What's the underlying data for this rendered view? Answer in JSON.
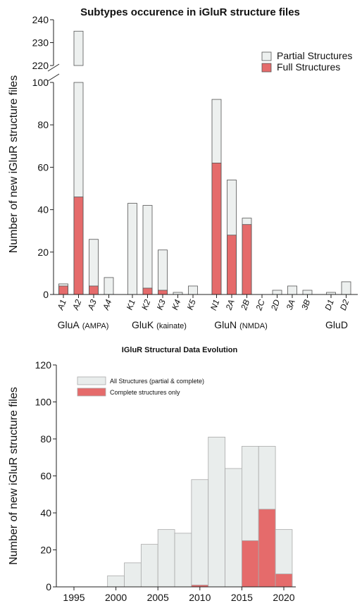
{
  "chart_data": [
    {
      "type": "bar",
      "title": "Subtypes occurence in iGluR structure files",
      "ylabel": "Number of new iGluR structure files",
      "xlabel": "",
      "ylim": [
        0,
        240
      ],
      "y_axis_break": [
        100,
        220
      ],
      "yticks": [
        "0",
        "20",
        "40",
        "60",
        "80",
        "100",
        "220",
        "230",
        "240"
      ],
      "categories": [
        "A1",
        "A2",
        "A3",
        "A4",
        "K1",
        "K2",
        "K3",
        "K4",
        "K5",
        "N1",
        "2A",
        "2B",
        "2C",
        "2D",
        "3A",
        "3B",
        "D1",
        "D2"
      ],
      "groups": [
        {
          "label": "GluA",
          "sub": "(AMPA)",
          "categories": [
            "A1",
            "A2",
            "A3",
            "A4"
          ]
        },
        {
          "label": "GluK",
          "sub": "(kainate)",
          "categories": [
            "K1",
            "K2",
            "K3",
            "K4",
            "K5"
          ]
        },
        {
          "label": "GluN",
          "sub": "(NMDA)",
          "categories": [
            "N1",
            "2A",
            "2B",
            "2C",
            "2D",
            "3A",
            "3B"
          ]
        },
        {
          "label": "GluD",
          "sub": "",
          "categories": [
            "D1",
            "D2"
          ]
        }
      ],
      "series": [
        {
          "name": "Partial Structures",
          "color": "#edf0ef",
          "values": [
            5,
            235,
            26,
            8,
            43,
            42,
            21,
            1,
            4,
            92,
            54,
            36,
            0,
            2,
            4,
            2,
            1,
            6
          ]
        },
        {
          "name": "Full Structures",
          "color": "#e56b6b",
          "values": [
            4,
            46,
            4,
            0,
            0,
            3,
            2,
            0,
            0,
            62,
            28,
            33,
            0,
            0,
            0,
            0,
            0,
            0
          ]
        }
      ],
      "legend": "top-right",
      "grid": false
    },
    {
      "type": "bar",
      "title": "IGluR Structural Data Evolution",
      "ylabel": "Number of new iGluR structure files",
      "xlabel": "",
      "xlim": [
        1995,
        2021
      ],
      "ylim": [
        0,
        120
      ],
      "xticks": [
        "1995",
        "2000",
        "2005",
        "2010",
        "2015",
        "2020"
      ],
      "yticks": [
        "0",
        "20",
        "40",
        "60",
        "80",
        "100",
        "120"
      ],
      "bins": [
        [
          1999,
          2001
        ],
        [
          2001,
          2003
        ],
        [
          2003,
          2005
        ],
        [
          2005,
          2007
        ],
        [
          2007,
          2009
        ],
        [
          2009,
          2011
        ],
        [
          2011,
          2013
        ],
        [
          2013,
          2015
        ],
        [
          2015,
          2017
        ],
        [
          2017,
          2019
        ],
        [
          2019,
          2021
        ]
      ],
      "series": [
        {
          "name": "All Structures (partial & complete)",
          "color": "#e9edec",
          "values": [
            6,
            13,
            23,
            31,
            29,
            58,
            81,
            64,
            76,
            76,
            31
          ]
        },
        {
          "name": "Complete structures only",
          "color": "#e56b6b",
          "values": [
            0,
            0,
            0,
            0,
            0,
            1,
            0,
            0,
            25,
            42,
            7
          ]
        }
      ],
      "legend": "top-left",
      "grid": false
    }
  ]
}
